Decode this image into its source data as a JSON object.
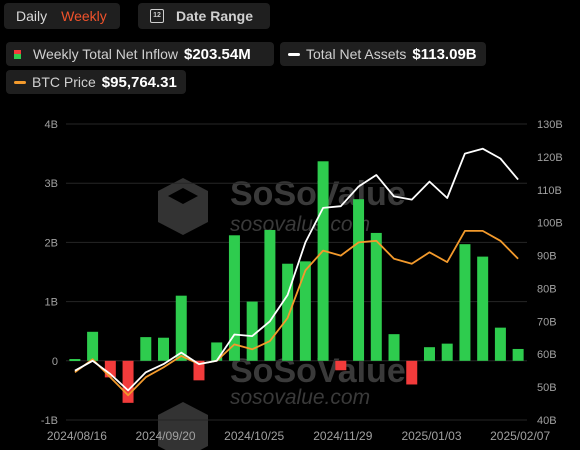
{
  "toolbar": {
    "daily_label": "Daily",
    "weekly_label": "Weekly",
    "date_range_label": "Date Range",
    "calendar_glyph": "12"
  },
  "legend": {
    "inflow_label": "Weekly Total Net Inflow",
    "inflow_value": "$203.54M",
    "assets_label": "Total Net Assets",
    "assets_value": "$113.09B",
    "btc_label": "BTC Price",
    "btc_value": "$95,764.31"
  },
  "watermark": {
    "brand": "SoSoValue",
    "url": "sosovalue.com"
  },
  "colors": {
    "positive": "#2ecc4e",
    "negative": "#f23b3b",
    "assets_line": "#ffffff",
    "btc_line": "#f39a2c",
    "accent": "#f0522b"
  },
  "chart_data": {
    "type": "bar",
    "left_axis": {
      "ticks": [
        "-1B",
        "0",
        "1B",
        "2B",
        "3B",
        "4B"
      ],
      "range": [
        -1,
        4
      ]
    },
    "right_axis": {
      "ticks": [
        "40B",
        "50B",
        "60B",
        "70B",
        "80B",
        "90B",
        "100B",
        "110B",
        "120B",
        "130B"
      ],
      "range": [
        40,
        130
      ]
    },
    "x_tick_labels": [
      "2024/08/16",
      "2024/09/20",
      "2024/10/25",
      "2024/11/29",
      "2025/01/03",
      "2025/02/07"
    ],
    "series": [
      {
        "name": "Weekly Total Net Inflow",
        "type": "bar",
        "axis": "left",
        "unit": "B",
        "values": [
          0.03,
          0.49,
          -0.28,
          -0.71,
          0.4,
          0.39,
          1.1,
          -0.33,
          0.31,
          2.12,
          1.0,
          2.21,
          1.64,
          1.68,
          3.37,
          -0.16,
          2.73,
          2.16,
          0.45,
          -0.4,
          0.23,
          0.29,
          1.97,
          1.76,
          0.56,
          0.2
        ]
      },
      {
        "name": "Total Net Assets",
        "type": "line",
        "axis": "right",
        "unit": "B",
        "values": [
          55.0,
          58.0,
          54.0,
          49.0,
          54.5,
          57.0,
          60.5,
          57.0,
          58.0,
          66.0,
          65.5,
          70.0,
          78.0,
          94.0,
          104.5,
          105.0,
          111.0,
          114.5,
          108.0,
          107.0,
          112.5,
          107.5,
          121.0,
          122.5,
          119.5,
          113.09
        ]
      },
      {
        "name": "BTC Price",
        "type": "line",
        "axis": "right",
        "unit": "B-scale",
        "values": [
          54.5,
          58.5,
          53.0,
          47.5,
          53.0,
          56.0,
          59.5,
          57.0,
          58.0,
          63.0,
          61.5,
          64.0,
          71.0,
          85.5,
          91.5,
          90.0,
          94.0,
          94.5,
          89.0,
          87.5,
          91.0,
          88.0,
          97.5,
          97.5,
          94.5,
          89.0
        ]
      }
    ]
  }
}
